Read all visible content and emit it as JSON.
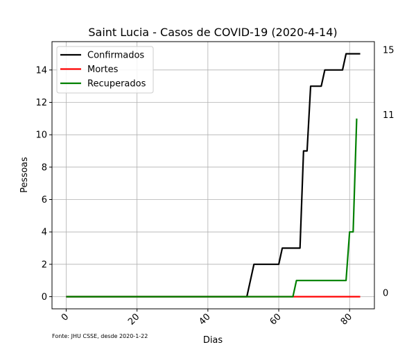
{
  "chart_data": {
    "type": "line",
    "title": "Saint Lucia - Casos de COVID-19 (2020-4-14)",
    "xlabel": "Dias",
    "ylabel": "Pessoas",
    "xlim": [
      -4,
      87
    ],
    "ylim": [
      -0.75,
      15.75
    ],
    "xticks": [
      0,
      20,
      40,
      60,
      80
    ],
    "yticks": [
      0,
      2,
      4,
      6,
      8,
      10,
      12,
      14
    ],
    "grid": true,
    "legend_position": "top-left",
    "right_labels": [
      "15",
      "11",
      "0"
    ],
    "series": [
      {
        "name": "Confirmados",
        "color": "#000000",
        "points": [
          [
            0,
            0
          ],
          [
            51,
            0
          ],
          [
            53,
            2
          ],
          [
            60,
            2
          ],
          [
            61,
            3
          ],
          [
            66,
            3
          ],
          [
            67,
            9
          ],
          [
            68,
            9
          ],
          [
            69,
            13
          ],
          [
            72,
            13
          ],
          [
            73,
            14
          ],
          [
            78,
            14
          ],
          [
            79,
            15
          ],
          [
            83,
            15
          ]
        ]
      },
      {
        "name": "Mortes",
        "color": "#ff0000",
        "points": [
          [
            0,
            0
          ],
          [
            83,
            0
          ]
        ]
      },
      {
        "name": "Recuperados",
        "color": "#008000",
        "points": [
          [
            0,
            0
          ],
          [
            64,
            0
          ],
          [
            65,
            1
          ],
          [
            79,
            1
          ],
          [
            80,
            4
          ],
          [
            81,
            4
          ],
          [
            82,
            11
          ]
        ]
      }
    ],
    "footer": "Fonte: JHU CSSE, desde 2020-1-22"
  }
}
